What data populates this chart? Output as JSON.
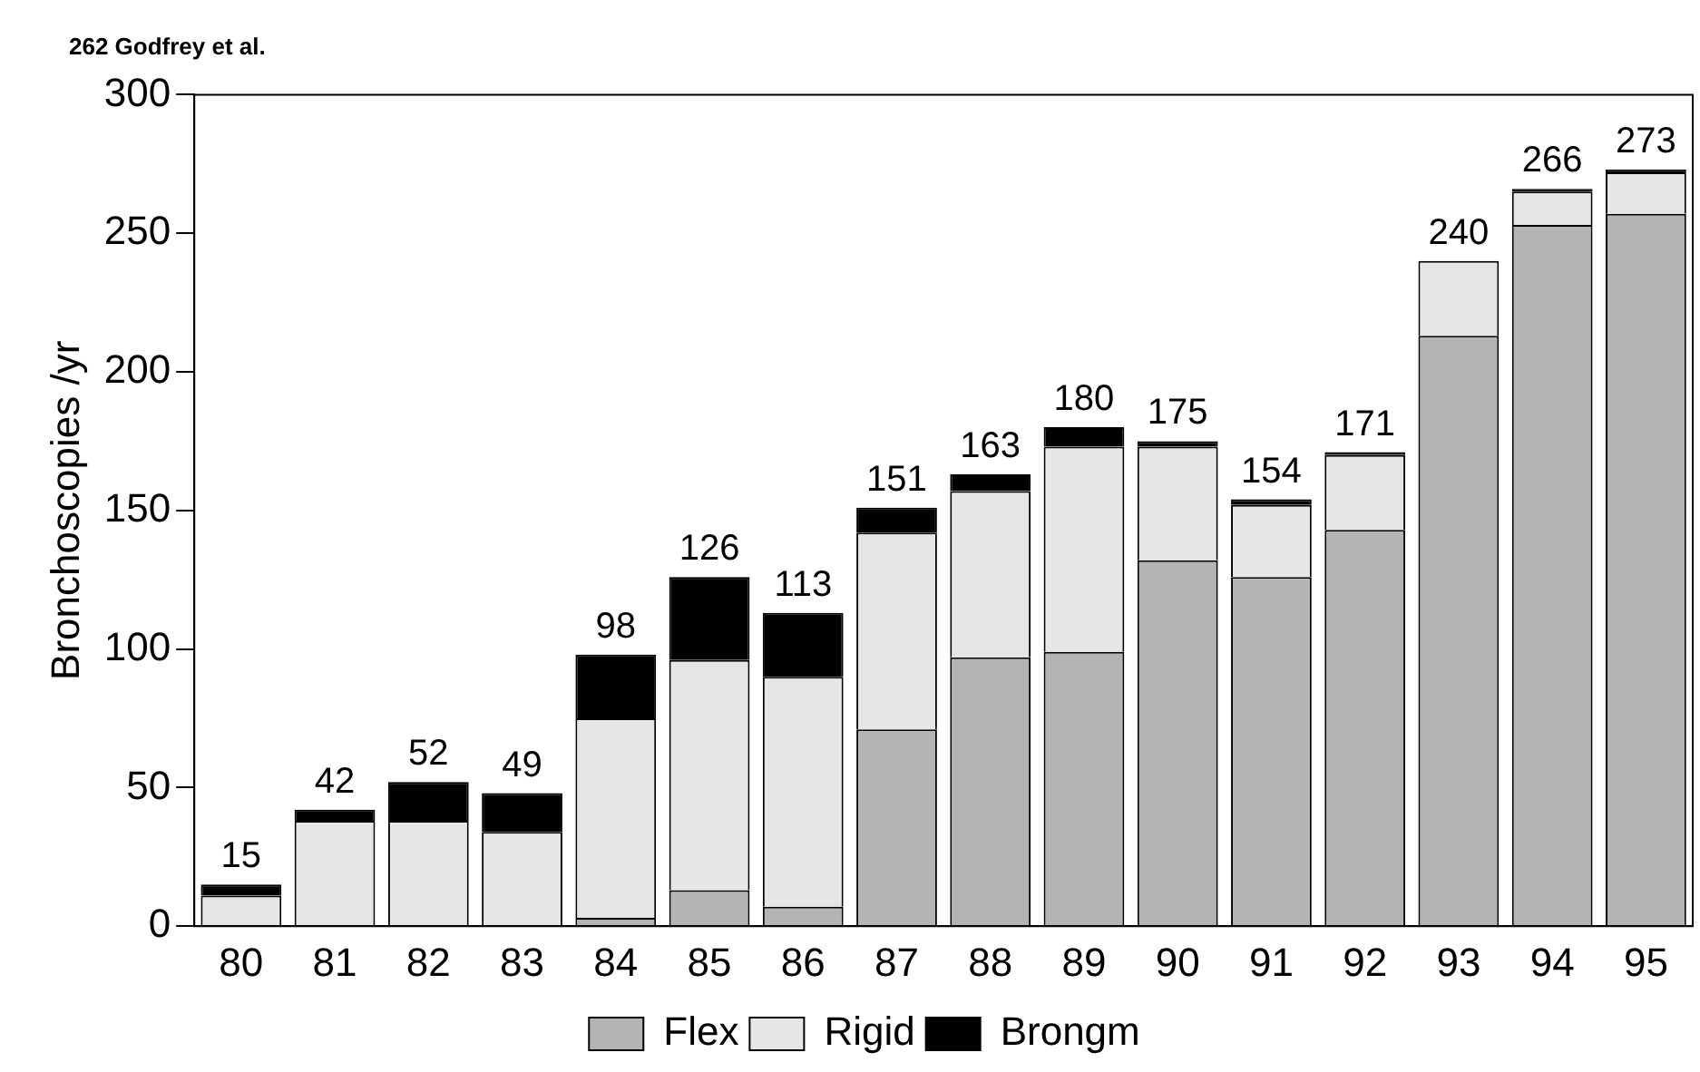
{
  "chart_data": {
    "type": "bar",
    "stacked": true,
    "ylabel": "Bronchoscopies /yr",
    "annotations": [
      "262 Godfrey et al."
    ],
    "categories": [
      "80",
      "81",
      "82",
      "83",
      "84",
      "85",
      "86",
      "87",
      "88",
      "89",
      "90",
      "91",
      "92",
      "93",
      "94",
      "95"
    ],
    "series": [
      {
        "name": "Flex",
        "color": "#b4b4b4",
        "values": [
          0,
          0,
          0,
          0,
          3,
          13,
          7,
          71,
          97,
          99,
          132,
          126,
          143,
          213,
          253,
          257
        ]
      },
      {
        "name": "Rigid",
        "color": "#e6e6e6",
        "values": [
          11,
          38,
          38,
          34,
          72,
          83,
          83,
          71,
          60,
          74,
          41,
          26,
          27,
          27,
          12,
          15
        ]
      },
      {
        "name": "Brongm",
        "color": "#000000",
        "values": [
          4,
          4,
          14,
          14,
          23,
          30,
          23,
          9,
          6,
          7,
          2,
          2,
          1,
          0,
          1,
          1
        ]
      }
    ],
    "totals": [
      "15",
      "42",
      "52",
      "49",
      "98",
      "126",
      "113",
      "151",
      "163",
      "180",
      "175",
      "154",
      "171",
      "240",
      "266",
      "273"
    ],
    "ylim": [
      0,
      300
    ],
    "yticks": [
      0,
      50,
      100,
      150,
      200,
      250,
      300
    ],
    "grid": false,
    "legend": "bottom"
  }
}
